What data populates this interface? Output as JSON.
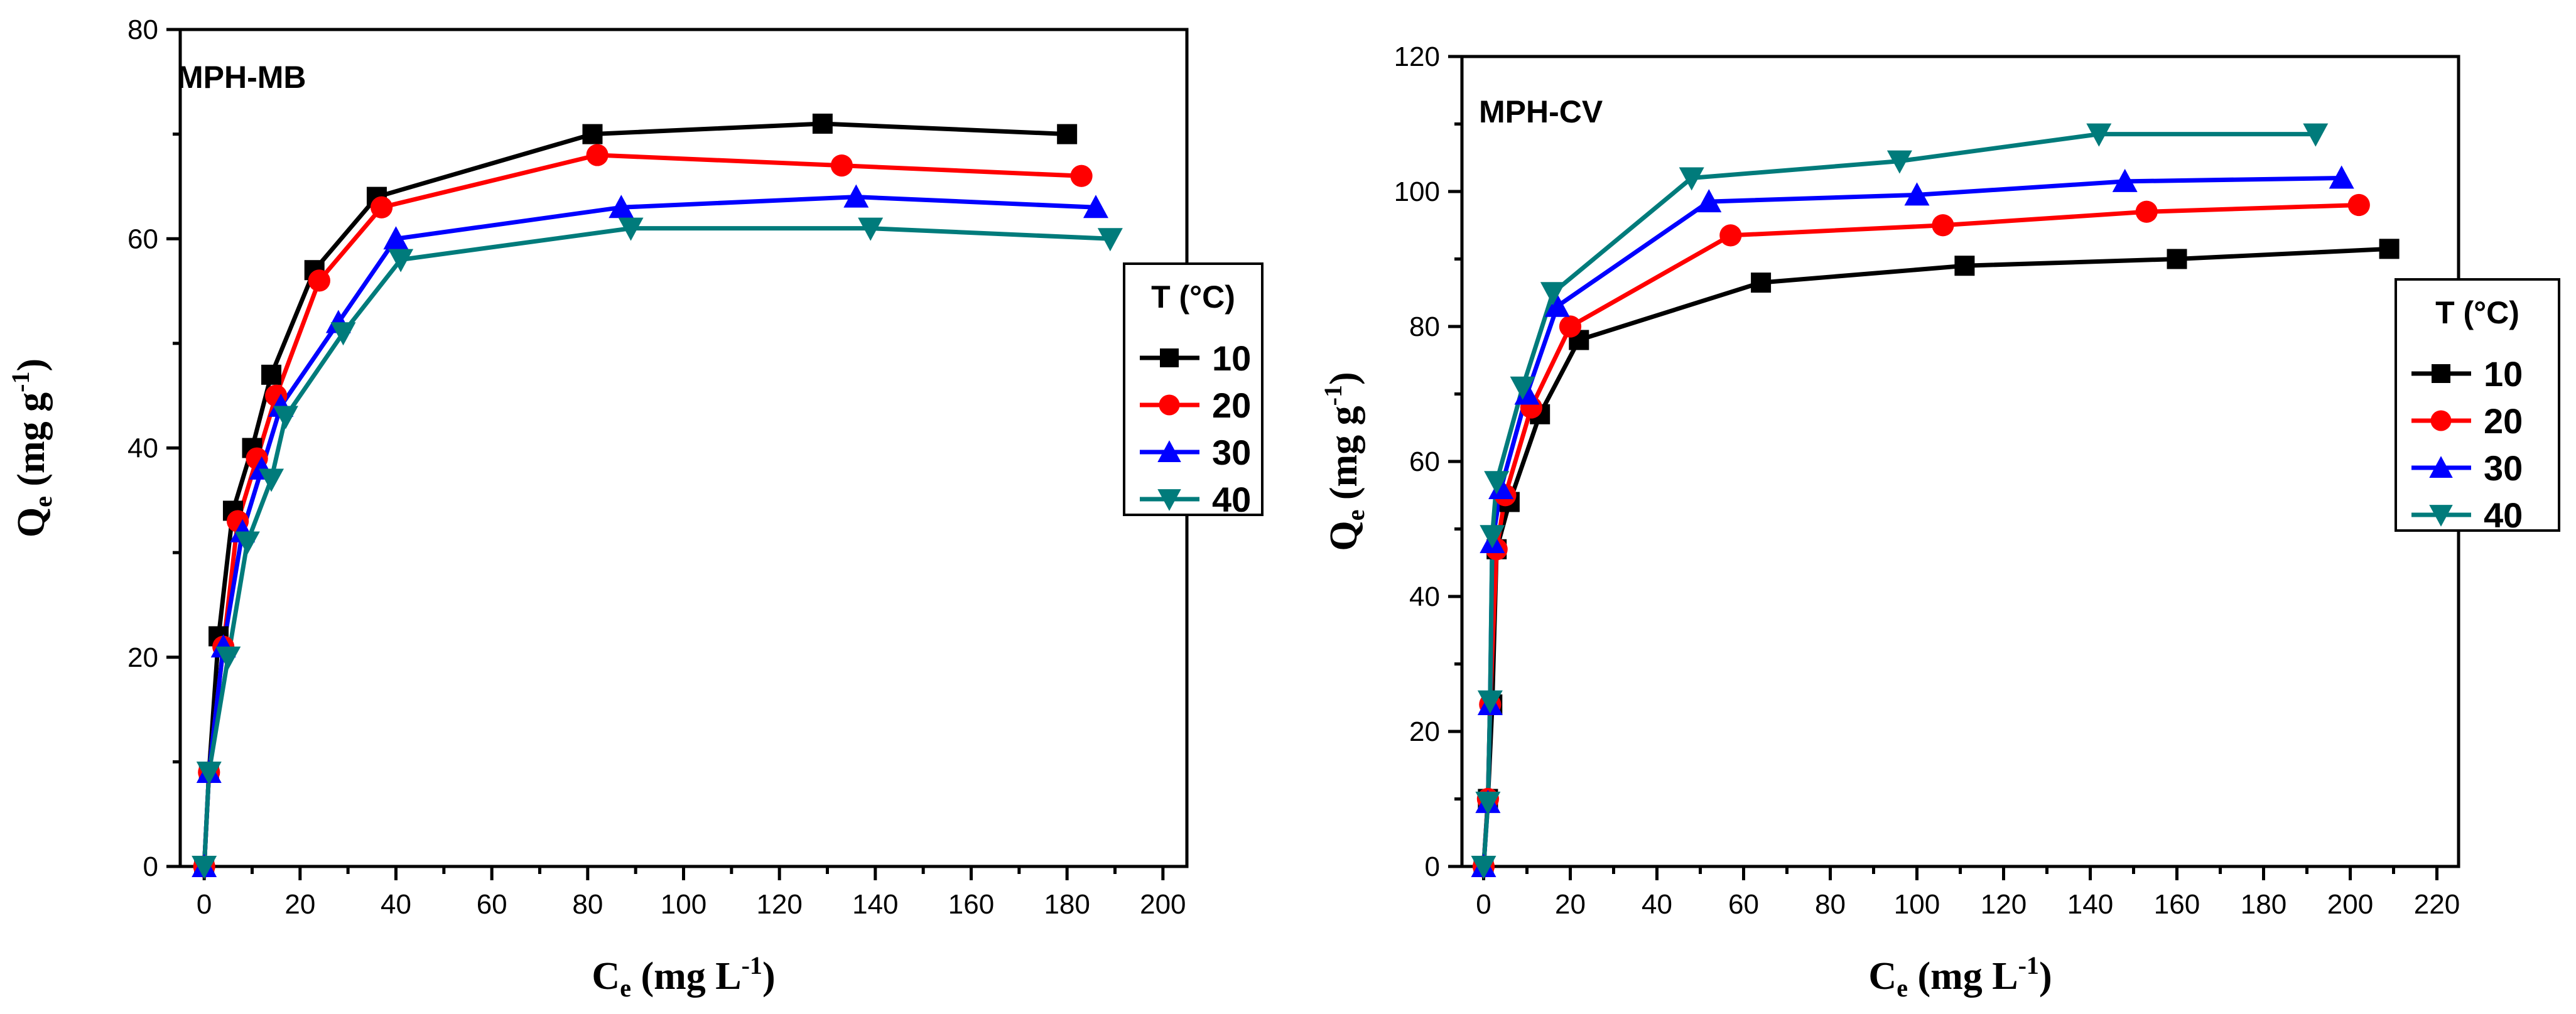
{
  "chart_data": [
    {
      "type": "line",
      "title": "MPH-MB",
      "xlabel": "Ce (mg L-1)",
      "xlabel_main": "C",
      "xlabel_sub": "e",
      "xlabel_rest": " (mg L",
      "xlabel_sup": "-1",
      "xlabel_close": ")",
      "ylabel": "Qe (mg g-1)",
      "ylabel_main": "Q",
      "ylabel_sub": "e",
      "ylabel_rest": " (mg g",
      "ylabel_sup": "-1",
      "ylabel_close": ")",
      "xlim": [
        -5,
        205
      ],
      "ylim": [
        0,
        80
      ],
      "xticks": [
        0,
        20,
        40,
        60,
        80,
        100,
        120,
        140,
        160,
        180,
        200
      ],
      "yticks": [
        0,
        20,
        40,
        60,
        80
      ],
      "legend_title": "T (°C)",
      "legend_position": "right",
      "series": [
        {
          "name": "10",
          "color": "#000000",
          "marker": "square",
          "x": [
            0,
            1,
            3,
            6,
            10,
            14,
            23,
            36,
            81,
            129,
            180
          ],
          "y": [
            0,
            9,
            22,
            34,
            40,
            47,
            57,
            64,
            70,
            71,
            70
          ]
        },
        {
          "name": "20",
          "color": "#ff0000",
          "marker": "circle",
          "x": [
            0,
            1,
            4,
            7,
            11,
            15,
            24,
            37,
            82,
            133,
            183
          ],
          "y": [
            0,
            9,
            21,
            33,
            39,
            45,
            56,
            63,
            68,
            67,
            66
          ]
        },
        {
          "name": "30",
          "color": "#0000ff",
          "marker": "triangle-up",
          "x": [
            0,
            1,
            4,
            8,
            12,
            16,
            28,
            40,
            87,
            136,
            186
          ],
          "y": [
            0,
            9,
            21,
            32,
            38,
            44,
            52,
            60,
            63,
            64,
            63
          ]
        },
        {
          "name": "40",
          "color": "#007b7b",
          "marker": "triangle-down",
          "x": [
            0,
            1,
            5,
            9,
            14,
            17,
            29,
            41,
            89,
            139,
            189
          ],
          "y": [
            0,
            9,
            20,
            31,
            37,
            43,
            51,
            58,
            61,
            61,
            60
          ]
        }
      ]
    },
    {
      "type": "line",
      "title": "MPH-CV",
      "xlabel": "Ce (mg L-1)",
      "xlabel_main": "C",
      "xlabel_sub": "e",
      "xlabel_rest": " (mg L",
      "xlabel_sup": "-1",
      "xlabel_close": ")",
      "ylabel": "Qe (mg g-1)",
      "ylabel_main": "Q",
      "ylabel_sub": "e",
      "ylabel_rest": " (mg g",
      "ylabel_sup": "-1",
      "ylabel_close": ")",
      "xlim": [
        -5,
        225
      ],
      "ylim": [
        0,
        120
      ],
      "xticks": [
        0,
        20,
        40,
        60,
        80,
        100,
        120,
        140,
        160,
        180,
        200,
        220
      ],
      "yticks": [
        0,
        20,
        40,
        60,
        80,
        100,
        120
      ],
      "legend_title": "T (°C)",
      "legend_position": "right",
      "series": [
        {
          "name": "10",
          "color": "#000000",
          "marker": "square",
          "x": [
            0,
            1,
            2,
            3,
            6,
            13,
            22,
            64,
            111,
            160,
            209
          ],
          "y": [
            0,
            10,
            24,
            47,
            54,
            67,
            78,
            86.5,
            89,
            90,
            91.5
          ]
        },
        {
          "name": "20",
          "color": "#ff0000",
          "marker": "circle",
          "x": [
            0,
            1,
            1.5,
            3,
            5,
            11,
            20,
            57,
            106,
            153,
            202
          ],
          "y": [
            0,
            10,
            24,
            47,
            55,
            68,
            80,
            93.5,
            95,
            97,
            98
          ]
        },
        {
          "name": "30",
          "color": "#0000ff",
          "marker": "triangle-up",
          "x": [
            0,
            1,
            1.5,
            2,
            4,
            10,
            17,
            52,
            100,
            148,
            198
          ],
          "y": [
            0,
            9.5,
            24,
            48,
            56,
            70,
            83,
            98.5,
            99.5,
            101.5,
            102
          ]
        },
        {
          "name": "40",
          "color": "#007b7b",
          "marker": "triangle-down",
          "x": [
            0,
            1,
            1.5,
            2,
            3,
            9,
            16,
            48,
            96,
            142,
            192
          ],
          "y": [
            0,
            9.5,
            24.5,
            49,
            57,
            71,
            85,
            102,
            104.5,
            108.5,
            108.5
          ]
        }
      ]
    }
  ]
}
